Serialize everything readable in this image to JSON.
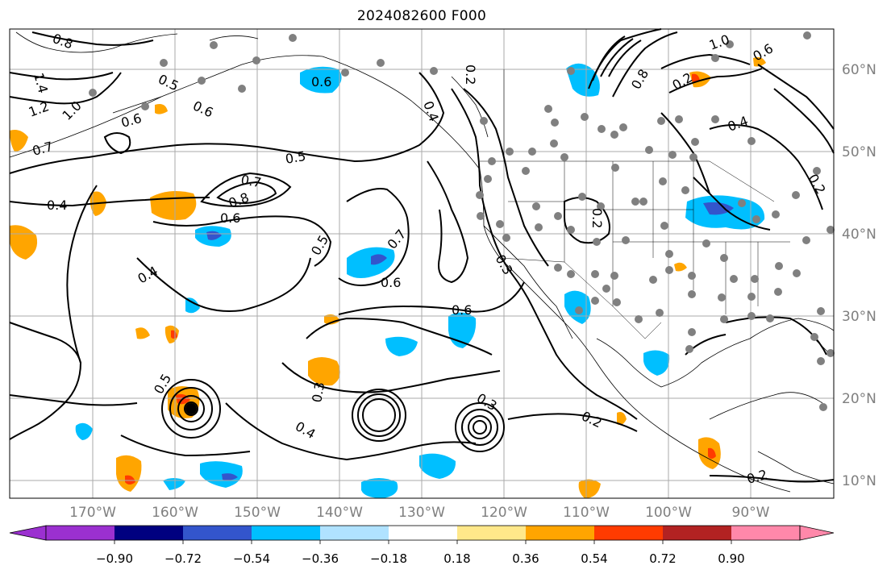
{
  "title": "2024082600 F000",
  "lon_labels": [
    "170°W",
    "160°W",
    "150°W",
    "140°W",
    "130°W",
    "120°W",
    "110°W",
    "100°W",
    "90°W"
  ],
  "lat_labels": [
    "60°N",
    "50°N",
    "40°N",
    "30°N",
    "20°N",
    "10°N"
  ],
  "colorbar": {
    "ticks": [
      "−0.90",
      "−0.72",
      "−0.54",
      "−0.36",
      "−0.18",
      "0.18",
      "0.36",
      "0.54",
      "0.72",
      "0.90"
    ],
    "colors": [
      "#9b30d0",
      "#000080",
      "#3355cc",
      "#00bfff",
      "#b0e2ff",
      "#ffffff",
      "#ffe88a",
      "#ffa500",
      "#ff3b00",
      "#b22222",
      "#ff88aa"
    ]
  },
  "contour_labels": [
    "0.8",
    "1.4",
    "1.2",
    "1.0",
    "0.7",
    "0.4",
    "0.5",
    "0.6",
    "0.5",
    "0.7",
    "0.8",
    "0.6",
    "0.5",
    "0.7",
    "0.6",
    "0.6",
    "0.4",
    "0.3",
    "0.4",
    "0.3",
    "0.2",
    "0.3",
    "0.2",
    "0.2",
    "0.4",
    "0.6",
    "0.5",
    "0.6",
    "0.2",
    "0.8",
    "0.2",
    "1.0",
    "0.6",
    "0.2",
    "0.4"
  ],
  "colors": {
    "grid": "#aaaaaa",
    "contour": "#000000",
    "station_dot": "#808080",
    "tick_text": "#7f7f7f"
  }
}
